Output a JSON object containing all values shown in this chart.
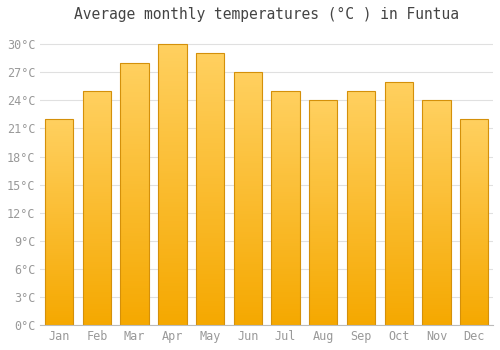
{
  "title": "Average monthly temperatures (°C ) in Funtua",
  "months": [
    "Jan",
    "Feb",
    "Mar",
    "Apr",
    "May",
    "Jun",
    "Jul",
    "Aug",
    "Sep",
    "Oct",
    "Nov",
    "Dec"
  ],
  "values": [
    22,
    25,
    28,
    30,
    29,
    27,
    25,
    24,
    25,
    26,
    24,
    22
  ],
  "bar_color_top": "#FFD060",
  "bar_color_bottom": "#F5A800",
  "bar_edge_color": "#D4900A",
  "background_color": "#FFFFFF",
  "plot_bg_color": "#FFFFFF",
  "grid_color": "#E0E0E0",
  "yticks": [
    0,
    3,
    6,
    9,
    12,
    15,
    18,
    21,
    24,
    27,
    30
  ],
  "ylim": [
    0,
    31.5
  ],
  "title_fontsize": 10.5,
  "tick_fontsize": 8.5,
  "bar_width": 0.75
}
